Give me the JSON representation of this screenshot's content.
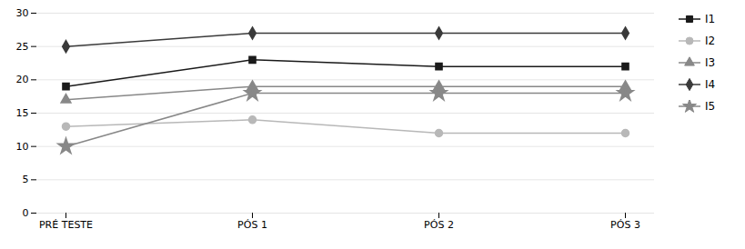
{
  "chart_data": {
    "type": "line",
    "categories": [
      "PRÉ TESTE",
      "PÓS 1",
      "PÓS 2",
      "PÓS 3"
    ],
    "series": [
      {
        "name": "I1",
        "color": "#1a1a1a",
        "marker": "square",
        "values": [
          19,
          23,
          22,
          22
        ]
      },
      {
        "name": "I2",
        "color": "#b8b8b8",
        "marker": "circle",
        "values": [
          13,
          14,
          12,
          12
        ]
      },
      {
        "name": "I3",
        "color": "#888888",
        "marker": "triangle",
        "values": [
          17,
          19,
          19,
          19
        ]
      },
      {
        "name": "I4",
        "color": "#3a3a3a",
        "marker": "diamond",
        "values": [
          25,
          27,
          27,
          27
        ]
      },
      {
        "name": "I5",
        "color": "#888888",
        "marker": "star",
        "values": [
          10,
          18,
          18,
          18
        ]
      }
    ],
    "ylim": [
      0,
      30
    ],
    "yticks": [
      0,
      5,
      10,
      15,
      20,
      25,
      30
    ],
    "grid": true,
    "legend": "right"
  }
}
